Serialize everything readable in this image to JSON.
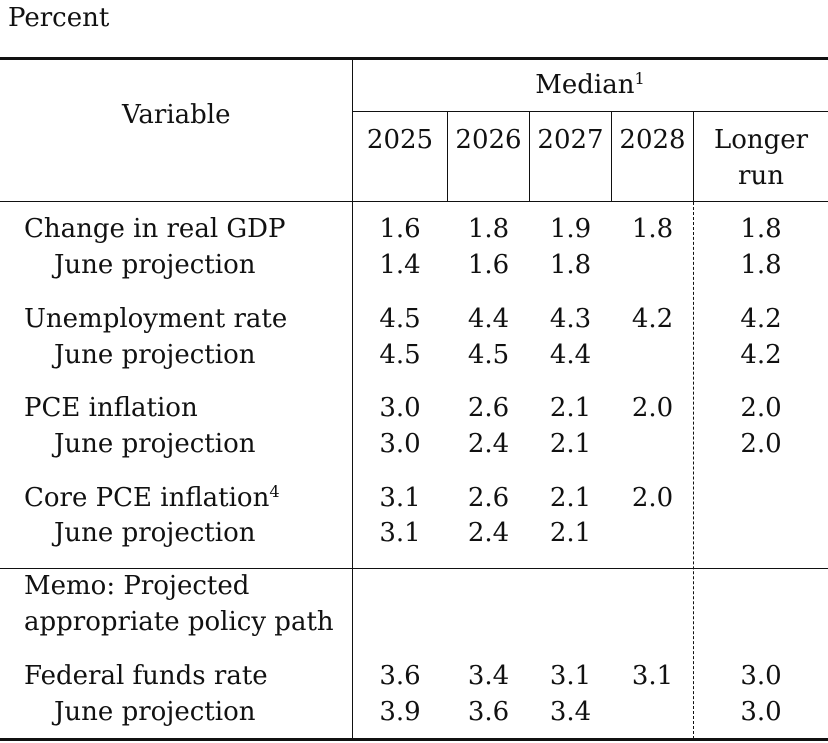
{
  "caption": "Percent",
  "header": {
    "variable": "Variable",
    "median": "Median",
    "median_note": "1",
    "years": [
      "2025",
      "2026",
      "2027",
      "2028"
    ],
    "longer_run_line1": "Longer",
    "longer_run_line2": "run"
  },
  "rows": {
    "gdp": {
      "label": "Change in real GDP",
      "values": [
        "1.6",
        "1.8",
        "1.9",
        "1.8",
        "1.8"
      ]
    },
    "gdp_june": {
      "label": "June projection",
      "values": [
        "1.4",
        "1.6",
        "1.8",
        "",
        "1.8"
      ]
    },
    "unemp": {
      "label": "Unemployment rate",
      "values": [
        "4.5",
        "4.4",
        "4.3",
        "4.2",
        "4.2"
      ]
    },
    "unemp_june": {
      "label": "June projection",
      "values": [
        "4.5",
        "4.5",
        "4.4",
        "",
        "4.2"
      ]
    },
    "pce": {
      "label": "PCE inflation",
      "values": [
        "3.0",
        "2.6",
        "2.1",
        "2.0",
        "2.0"
      ]
    },
    "pce_june": {
      "label": "June projection",
      "values": [
        "3.0",
        "2.4",
        "2.1",
        "",
        "2.0"
      ]
    },
    "core": {
      "label": "Core PCE inflation",
      "note": "4",
      "values": [
        "3.1",
        "2.6",
        "2.1",
        "2.0",
        ""
      ]
    },
    "core_june": {
      "label": "June projection",
      "values": [
        "3.1",
        "2.4",
        "2.1",
        "",
        ""
      ]
    },
    "fed": {
      "label": "Federal funds rate",
      "values": [
        "3.6",
        "3.4",
        "3.1",
        "3.1",
        "3.0"
      ]
    },
    "fed_june": {
      "label": "June projection",
      "values": [
        "3.9",
        "3.6",
        "3.4",
        "",
        "3.0"
      ]
    }
  },
  "memo": {
    "line1": "Memo: Projected",
    "line2": "appropriate policy path"
  }
}
